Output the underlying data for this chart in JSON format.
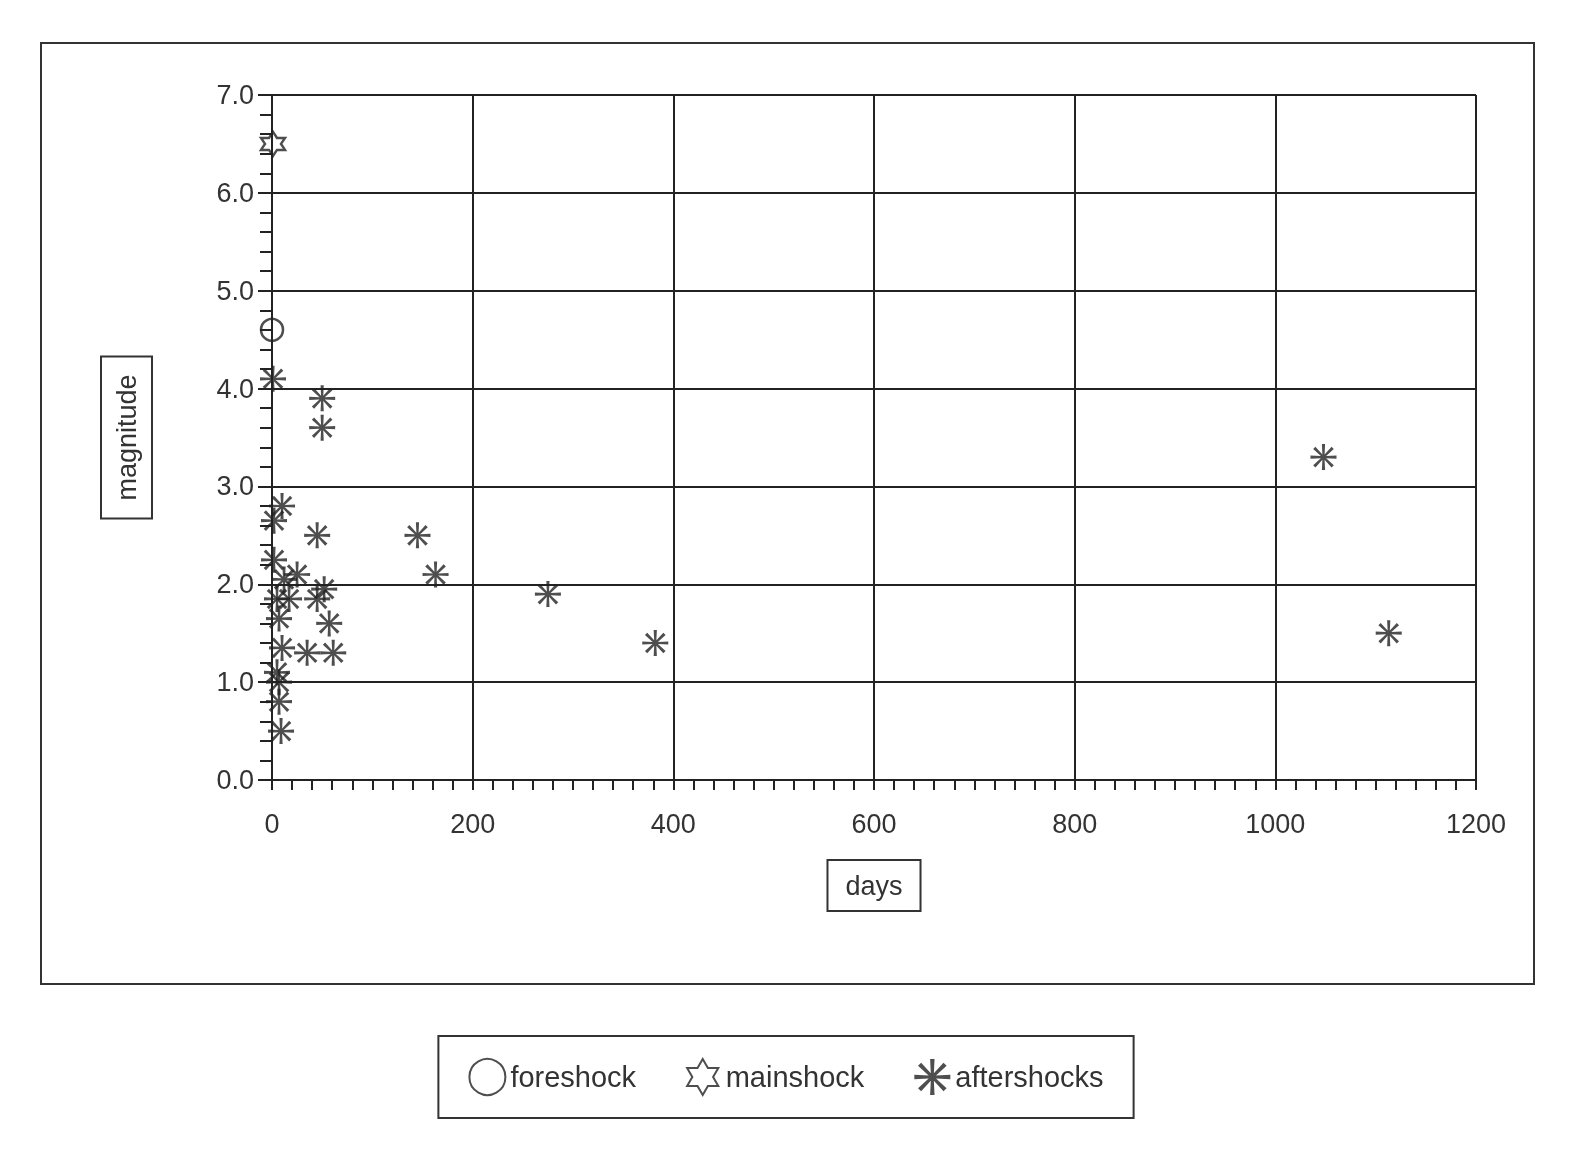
{
  "chart_data": {
    "type": "scatter",
    "xlabel": "days",
    "ylabel": "magnitude",
    "xlim": [
      0,
      1200
    ],
    "xticks": [
      0,
      200,
      400,
      600,
      800,
      1000,
      1200
    ],
    "ylim": [
      0,
      7
    ],
    "yticks": [
      {
        "value": 0,
        "label": "0.0"
      },
      {
        "value": 1,
        "label": "1.0"
      },
      {
        "value": 2,
        "label": "2.0"
      },
      {
        "value": 3,
        "label": "3.0"
      },
      {
        "value": 4,
        "label": "4.0"
      },
      {
        "value": 5,
        "label": "5.0"
      },
      {
        "value": 6,
        "label": "6.0"
      },
      {
        "value": 7,
        "label": "7.0"
      }
    ],
    "grid": true,
    "legend": "bottom",
    "series": [
      {
        "name": "foreshock",
        "color": "#222222",
        "marker": "circle",
        "x": [
          0
        ],
        "values": [
          4.6
        ]
      },
      {
        "name": "mainshock",
        "color": "#222222",
        "marker": "star",
        "x": [
          1
        ],
        "values": [
          6.5
        ]
      },
      {
        "name": "aftershocks",
        "color": "#222222",
        "marker": "cross",
        "x": [
          1,
          50,
          50,
          10,
          2,
          45,
          145,
          163,
          275,
          382,
          1048,
          1113,
          25,
          12,
          45,
          52,
          57,
          35,
          61,
          7,
          10,
          7,
          9,
          5,
          17,
          2,
          5,
          7
        ],
        "values": [
          4.1,
          3.9,
          3.6,
          2.8,
          2.65,
          2.5,
          2.5,
          2.1,
          1.9,
          1.4,
          3.3,
          1.5,
          2.1,
          2.05,
          1.85,
          1.95,
          1.6,
          1.3,
          1.3,
          1.65,
          1.35,
          0.8,
          0.5,
          1.85,
          1.85,
          2.25,
          1.1,
          1.0
        ]
      }
    ]
  }
}
